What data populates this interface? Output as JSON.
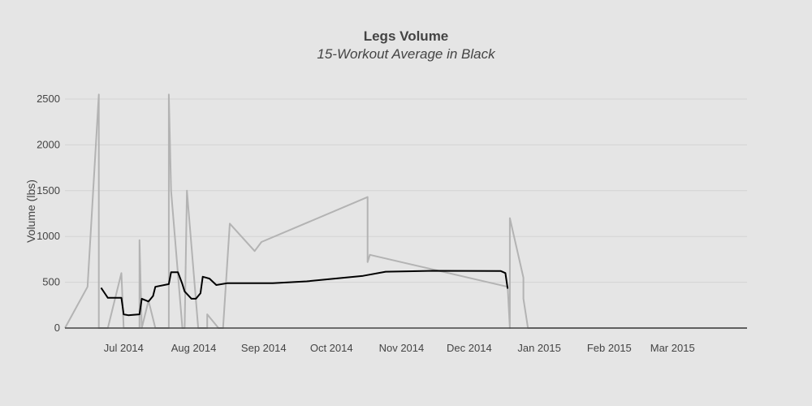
{
  "chart_data": {
    "type": "line",
    "title": "Legs Volume",
    "subtitle": "15-Workout Average in Black",
    "xlabel": "",
    "ylabel": "Volume (lbs)",
    "xlim": [
      "2014-06-05",
      "2015-04-03"
    ],
    "ylim": [
      0,
      2600
    ],
    "grid": true,
    "x_ticks": [
      {
        "date": "2014-07-01",
        "label": "Jul 2014"
      },
      {
        "date": "2014-08-01",
        "label": "Aug 2014"
      },
      {
        "date": "2014-09-01",
        "label": "Sep 2014"
      },
      {
        "date": "2014-10-01",
        "label": "Oct 2014"
      },
      {
        "date": "2014-11-01",
        "label": "Nov 2014"
      },
      {
        "date": "2014-12-01",
        "label": "Dec 2014"
      },
      {
        "date": "2015-01-01",
        "label": "Jan 2015"
      },
      {
        "date": "2015-02-01",
        "label": "Feb 2015"
      },
      {
        "date": "2015-03-01",
        "label": "Mar 2015"
      }
    ],
    "y_ticks": [
      0,
      500,
      1000,
      1500,
      2000,
      2500
    ],
    "series": [
      {
        "color": "#b3b3b3",
        "points": [
          [
            "2014-06-05",
            0
          ],
          [
            "2014-06-15",
            450
          ],
          [
            "2014-06-20",
            2550
          ],
          [
            "2014-06-20",
            0
          ],
          [
            "2014-06-24",
            0
          ],
          [
            "2014-07-00",
            600
          ],
          [
            "2014-07-01",
            0
          ],
          [
            "2014-07-08",
            0
          ],
          [
            "2014-07-08",
            960
          ],
          [
            "2014-07-09",
            0
          ],
          [
            "2014-07-12",
            300
          ],
          [
            "2014-07-15",
            0
          ],
          [
            "2014-07-21",
            0
          ],
          [
            "2014-07-21",
            2550
          ],
          [
            "2014-07-22",
            1500
          ],
          [
            "2014-07-27",
            0
          ],
          [
            "2014-07-28",
            0
          ],
          [
            "2014-07-29",
            1500
          ],
          [
            "2014-08-03",
            0
          ],
          [
            "2014-08-07",
            0
          ],
          [
            "2014-08-07",
            150
          ],
          [
            "2014-08-12",
            0
          ],
          [
            "2014-08-14",
            0
          ],
          [
            "2014-08-17",
            1140
          ],
          [
            "2014-08-28",
            840
          ],
          [
            "2014-08-31",
            940
          ],
          [
            "2014-10-17",
            1430
          ],
          [
            "2014-10-17",
            720
          ],
          [
            "2014-10-18",
            800
          ],
          [
            "2014-12-18",
            450
          ],
          [
            "2014-12-19",
            0
          ],
          [
            "2014-12-19",
            1200
          ],
          [
            "2014-12-25",
            550
          ],
          [
            "2014-12-25",
            320
          ],
          [
            "2014-12-27",
            0
          ],
          [
            "2015-04-03",
            0
          ]
        ]
      },
      {
        "color": "#000000",
        "points": [
          [
            "2014-06-21",
            440
          ],
          [
            "2014-06-24",
            330
          ],
          [
            "2014-07-00",
            330
          ],
          [
            "2014-07-01",
            150
          ],
          [
            "2014-07-03",
            140
          ],
          [
            "2014-07-08",
            150
          ],
          [
            "2014-07-09",
            320
          ],
          [
            "2014-07-12",
            290
          ],
          [
            "2014-07-14",
            350
          ],
          [
            "2014-07-15",
            450
          ],
          [
            "2014-07-21",
            480
          ],
          [
            "2014-07-22",
            610
          ],
          [
            "2014-07-25",
            610
          ],
          [
            "2014-07-27",
            480
          ],
          [
            "2014-07-28",
            400
          ],
          [
            "2014-07-31",
            320
          ],
          [
            "2014-08-02",
            320
          ],
          [
            "2014-08-04",
            380
          ],
          [
            "2014-08-05",
            560
          ],
          [
            "2014-08-08",
            540
          ],
          [
            "2014-08-11",
            470
          ],
          [
            "2014-08-16",
            490
          ],
          [
            "2014-08-28",
            490
          ],
          [
            "2014-09-05",
            490
          ],
          [
            "2014-09-20",
            510
          ],
          [
            "2014-10-15",
            570
          ],
          [
            "2014-10-25",
            615
          ],
          [
            "2014-11-15",
            625
          ],
          [
            "2014-12-15",
            622
          ],
          [
            "2014-12-17",
            600
          ],
          [
            "2014-12-18",
            430
          ]
        ]
      }
    ]
  }
}
